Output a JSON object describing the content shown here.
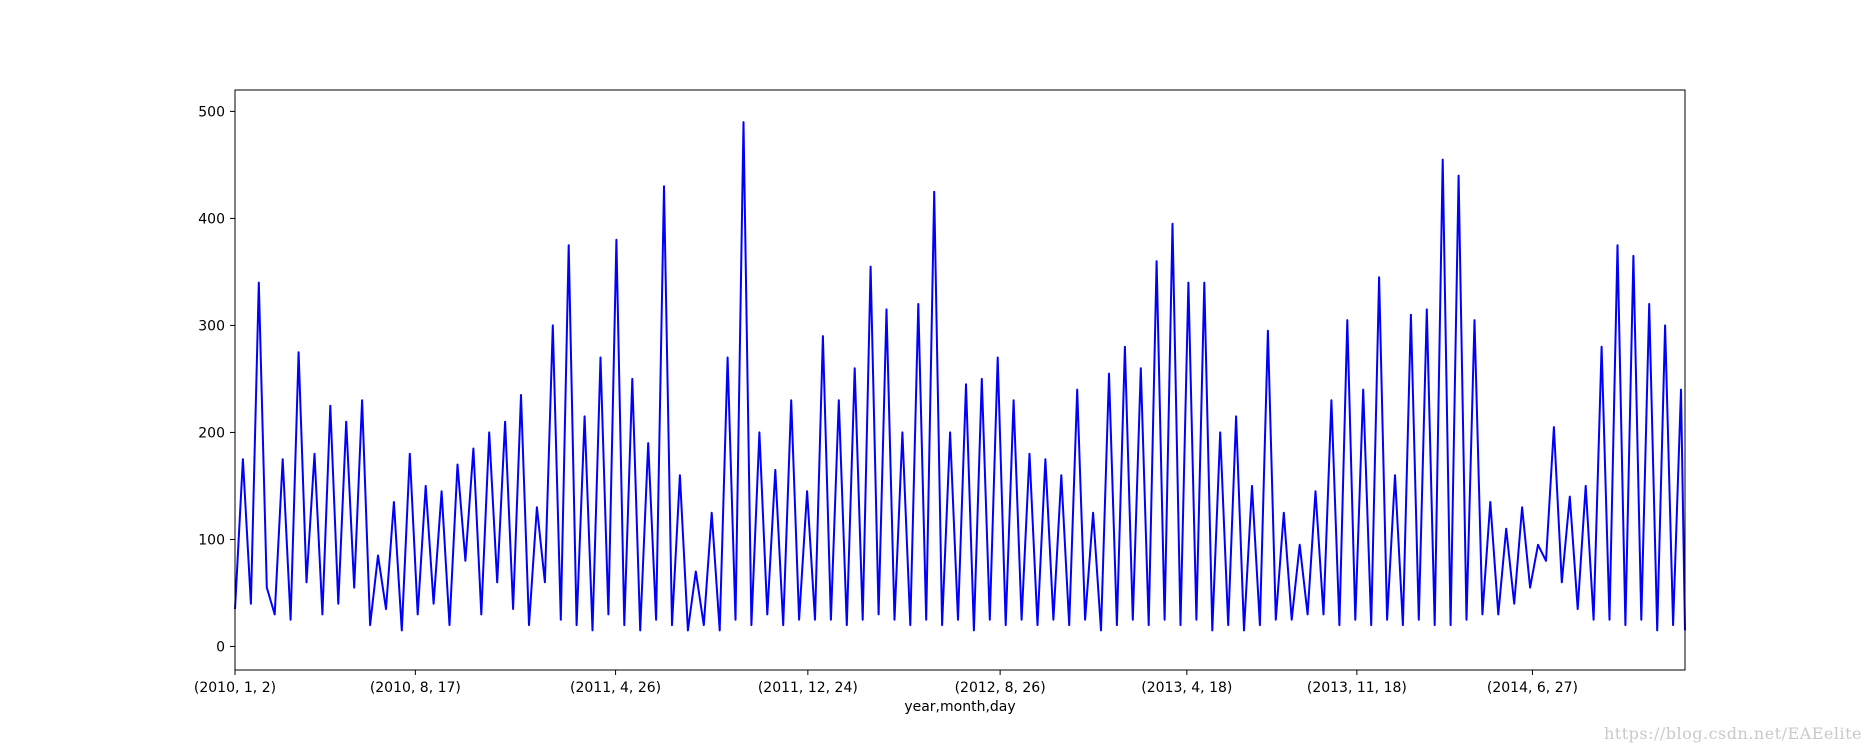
{
  "watermark": "https://blog.csdn.net/EAEelite",
  "chart_data": {
    "type": "line",
    "xlabel": "year,month,day",
    "ylabel": "",
    "title": "",
    "ylim": [
      -22,
      520
    ],
    "yticks": [
      0,
      100,
      200,
      300,
      400,
      500
    ],
    "xlim": [
      0,
      1825
    ],
    "xticks": [
      {
        "x": 0,
        "label": "(2010, 1, 2)"
      },
      {
        "x": 227,
        "label": "(2010, 8, 17)"
      },
      {
        "x": 479,
        "label": "(2011, 4, 26)"
      },
      {
        "x": 721,
        "label": "(2011, 12, 24)"
      },
      {
        "x": 963,
        "label": "(2012, 8, 26)"
      },
      {
        "x": 1198,
        "label": "(2013, 4, 18)"
      },
      {
        "x": 1412,
        "label": "(2013, 11, 18)"
      },
      {
        "x": 1633,
        "label": "(2014, 6, 27)"
      }
    ],
    "color": "#0000ff",
    "grid": false,
    "series": [
      {
        "x": [
          0,
          10,
          20,
          30,
          40,
          50,
          60,
          70,
          80,
          90,
          100,
          110,
          120,
          130,
          140,
          150,
          160,
          170,
          180,
          190,
          200,
          210,
          220,
          230,
          240,
          250,
          260,
          270,
          280,
          290,
          300,
          310,
          320,
          330,
          340,
          350,
          360,
          370,
          380,
          390,
          400,
          410,
          420,
          430,
          440,
          450,
          460,
          470,
          480,
          490,
          500,
          510,
          520,
          530,
          540,
          550,
          560,
          570,
          580,
          590,
          600,
          610,
          620,
          630,
          640,
          650,
          660,
          670,
          680,
          690,
          700,
          710,
          720,
          730,
          740,
          750,
          760,
          770,
          780,
          790,
          800,
          810,
          820,
          830,
          840,
          850,
          860,
          870,
          880,
          890,
          900,
          910,
          920,
          930,
          940,
          950,
          960,
          970,
          980,
          990,
          1000,
          1010,
          1020,
          1030,
          1040,
          1050,
          1060,
          1070,
          1080,
          1090,
          1100,
          1110,
          1120,
          1130,
          1140,
          1150,
          1160,
          1170,
          1180,
          1190,
          1200,
          1210,
          1220,
          1230,
          1240,
          1250,
          1260,
          1270,
          1280,
          1290,
          1300,
          1310,
          1320,
          1330,
          1340,
          1350,
          1360,
          1370,
          1380,
          1390,
          1400,
          1410,
          1420,
          1430,
          1440,
          1450,
          1460,
          1470,
          1480,
          1490,
          1500,
          1510,
          1520,
          1530,
          1540,
          1550,
          1560,
          1570,
          1580,
          1590,
          1600,
          1610,
          1620,
          1630,
          1640,
          1650,
          1660,
          1670,
          1680,
          1690,
          1700,
          1710,
          1720,
          1730,
          1740,
          1750,
          1760,
          1770,
          1780,
          1790,
          1800,
          1810,
          1820,
          1825
        ],
        "y": [
          35,
          175,
          40,
          340,
          55,
          30,
          175,
          25,
          275,
          60,
          180,
          30,
          225,
          40,
          210,
          55,
          230,
          20,
          85,
          35,
          135,
          15,
          180,
          30,
          150,
          40,
          145,
          20,
          170,
          80,
          185,
          30,
          200,
          60,
          210,
          35,
          235,
          20,
          130,
          60,
          300,
          25,
          375,
          20,
          215,
          15,
          270,
          30,
          380,
          20,
          250,
          15,
          190,
          25,
          430,
          20,
          160,
          15,
          70,
          20,
          125,
          15,
          270,
          25,
          490,
          20,
          200,
          30,
          165,
          20,
          230,
          25,
          145,
          25,
          290,
          25,
          230,
          20,
          260,
          25,
          355,
          30,
          315,
          25,
          200,
          20,
          320,
          25,
          425,
          20,
          200,
          25,
          245,
          15,
          250,
          25,
          270,
          20,
          230,
          25,
          180,
          20,
          175,
          25,
          160,
          20,
          240,
          25,
          125,
          15,
          255,
          20,
          280,
          25,
          260,
          20,
          360,
          25,
          395,
          20,
          340,
          25,
          340,
          15,
          200,
          20,
          215,
          15,
          150,
          20,
          295,
          25,
          125,
          25,
          95,
          30,
          145,
          30,
          230,
          20,
          305,
          25,
          240,
          20,
          345,
          25,
          160,
          20,
          310,
          25,
          315,
          20,
          455,
          20,
          440,
          25,
          305,
          30,
          135,
          30,
          110,
          40,
          130,
          55,
          95,
          80,
          205,
          60,
          140,
          35,
          150,
          25,
          280,
          25,
          375,
          20,
          365,
          25,
          320,
          15,
          300,
          20,
          240,
          15
        ]
      }
    ]
  }
}
